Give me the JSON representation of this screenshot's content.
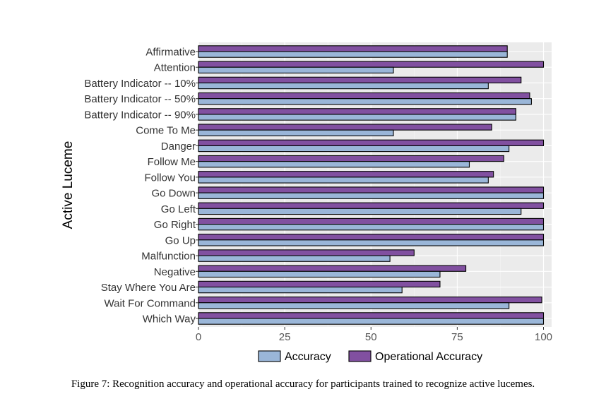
{
  "chart_data": {
    "type": "bar",
    "orientation": "horizontal",
    "title": "",
    "xlabel": "",
    "ylabel": "Active Luceme",
    "xlim": [
      0,
      100
    ],
    "x_ticks": [
      0,
      25,
      50,
      75,
      100
    ],
    "grid": true,
    "legend_position": "bottom",
    "categories": [
      "Affirmative",
      "Attention",
      "Battery Indicator -- 10%",
      "Battery Indicator -- 50%",
      "Battery Indicator -- 90%",
      "Come To Me",
      "Danger",
      "Follow Me",
      "Follow You",
      "Go Down",
      "Go Left",
      "Go Right",
      "Go Up",
      "Malfunction",
      "Negative",
      "Stay Where You Are",
      "Wait For Command",
      "Which Way"
    ],
    "series": [
      {
        "name": "Accuracy",
        "color": "#9ab6d8",
        "values": [
          89.5,
          56.5,
          84,
          96.5,
          92,
          56.5,
          90,
          78.5,
          84,
          100,
          93.5,
          100,
          100,
          55.5,
          70,
          59,
          90,
          100
        ]
      },
      {
        "name": "Operational Accuracy",
        "color": "#8150a0",
        "values": [
          89.5,
          100,
          93.5,
          96,
          92,
          85,
          100,
          88.5,
          85.5,
          100,
          100,
          100,
          100,
          62.5,
          77.5,
          70,
          99.5,
          100
        ]
      }
    ]
  },
  "caption": "Figure 7: Recognition accuracy and operational accuracy for participants trained to recognize active lucemes."
}
